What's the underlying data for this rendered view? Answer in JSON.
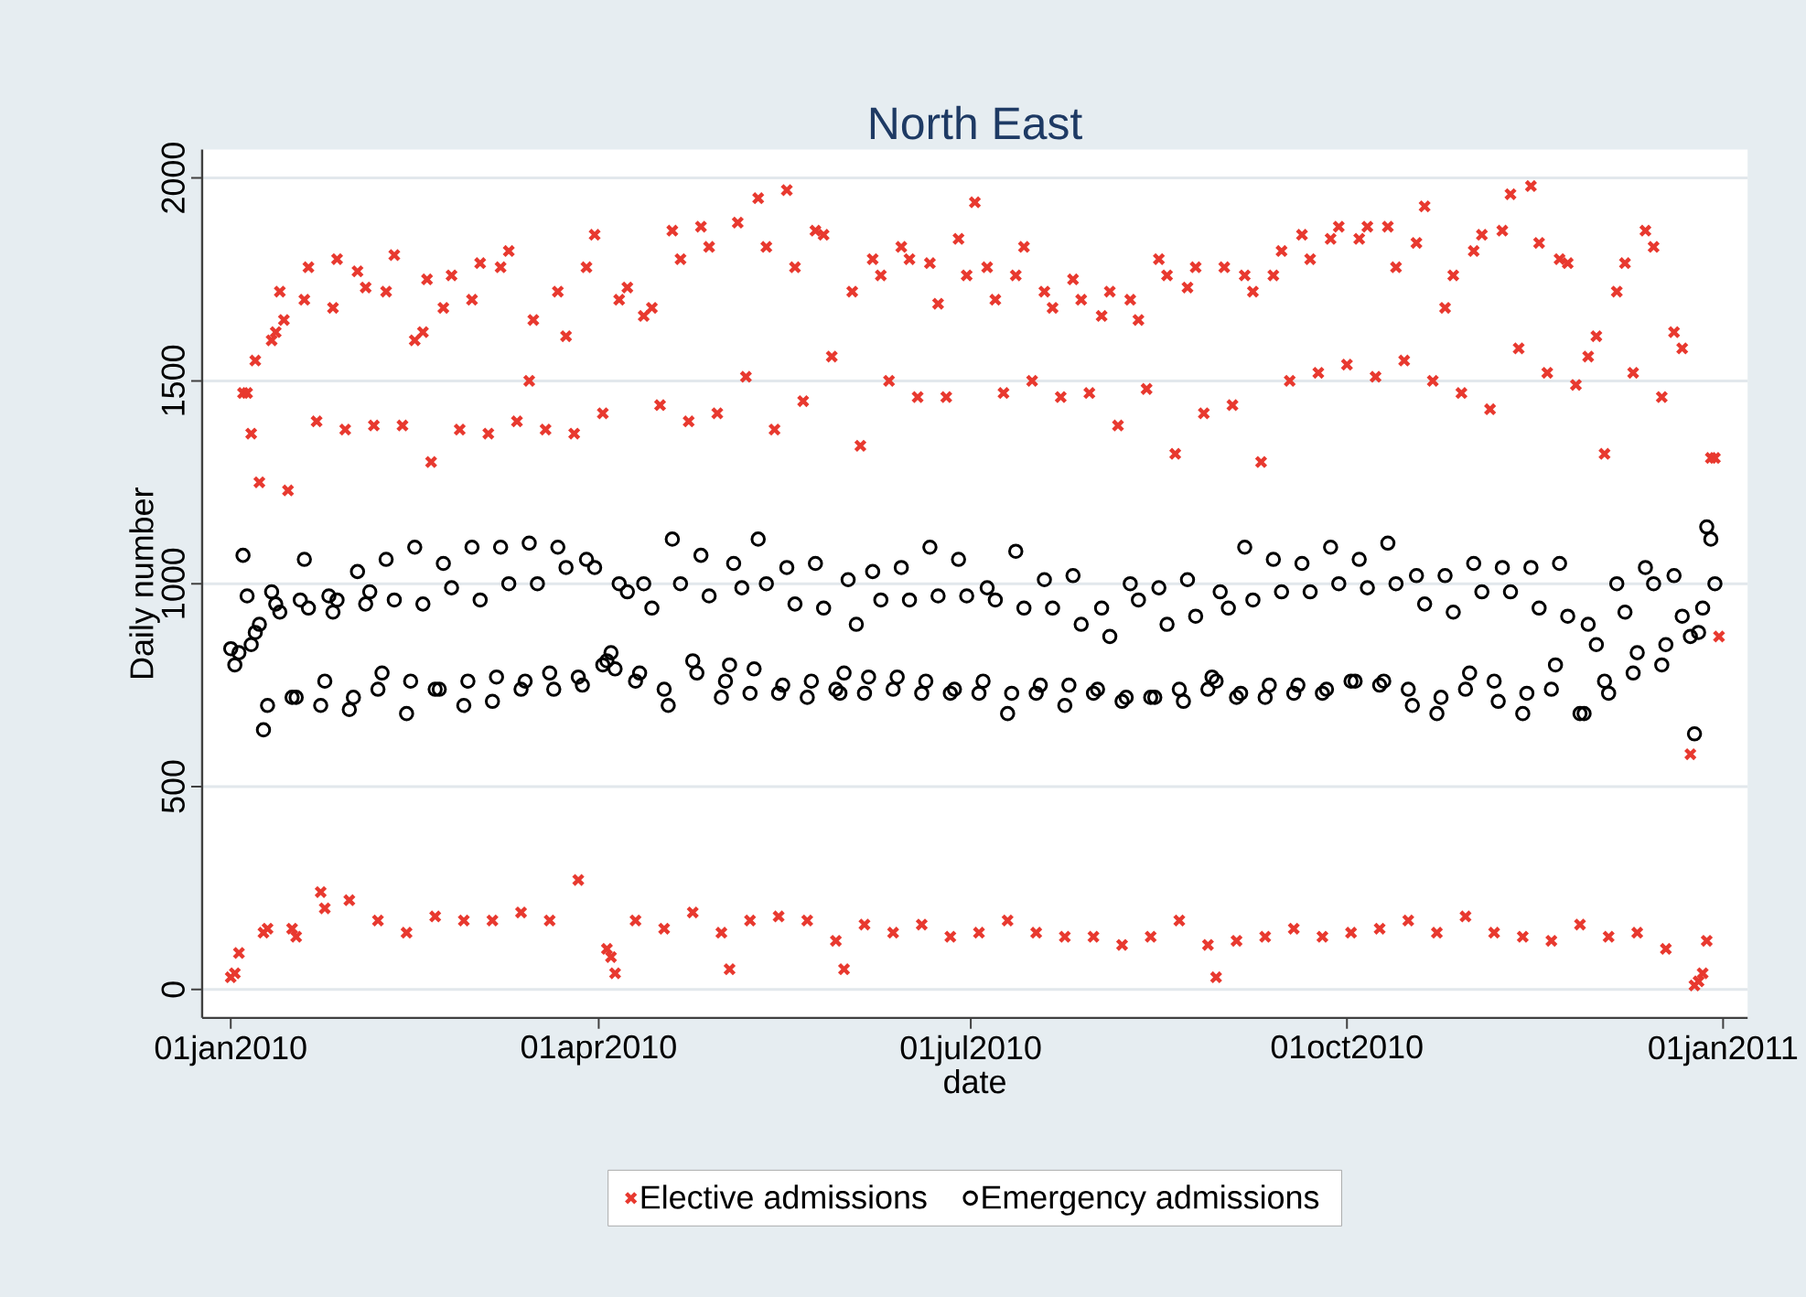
{
  "chart_data": {
    "type": "scatter",
    "title": "North East",
    "xlabel": "date",
    "ylabel": "Daily number",
    "xlim": [
      "2009-12-25",
      "2011-01-07"
    ],
    "ylim": [
      -70,
      2070
    ],
    "xticks": [
      {
        "value": "2010-01-01",
        "label": "01jan2010"
      },
      {
        "value": "2010-04-01",
        "label": "01apr2010"
      },
      {
        "value": "2010-07-01",
        "label": "01jul2010"
      },
      {
        "value": "2010-10-01",
        "label": "01oct2010"
      },
      {
        "value": "2011-01-01",
        "label": "01jan2011"
      }
    ],
    "yticks": [
      0,
      500,
      1000,
      1500,
      2000
    ],
    "grid": "y",
    "legend": "bottom",
    "series": [
      {
        "name": "Elective admissions",
        "color": "#e8392f",
        "marker": "cross",
        "x": [
          "2010-01-01",
          "2010-01-02",
          "2010-01-03",
          "2010-01-04",
          "2010-01-05",
          "2010-01-06",
          "2010-01-07",
          "2010-01-08",
          "2010-01-09",
          "2010-01-10",
          "2010-01-11",
          "2010-01-12",
          "2010-01-13",
          "2010-01-14",
          "2010-01-15",
          "2010-01-16",
          "2010-01-17",
          "2010-01-19",
          "2010-01-20",
          "2010-01-22",
          "2010-01-23",
          "2010-01-24",
          "2010-01-26",
          "2010-01-27",
          "2010-01-29",
          "2010-01-30",
          "2010-02-01",
          "2010-02-03",
          "2010-02-05",
          "2010-02-06",
          "2010-02-08",
          "2010-02-10",
          "2010-02-12",
          "2010-02-13",
          "2010-02-15",
          "2010-02-17",
          "2010-02-18",
          "2010-02-19",
          "2010-02-20",
          "2010-02-22",
          "2010-02-24",
          "2010-02-26",
          "2010-02-27",
          "2010-03-01",
          "2010-03-03",
          "2010-03-05",
          "2010-03-06",
          "2010-03-08",
          "2010-03-10",
          "2010-03-12",
          "2010-03-13",
          "2010-03-15",
          "2010-03-16",
          "2010-03-19",
          "2010-03-20",
          "2010-03-22",
          "2010-03-24",
          "2010-03-26",
          "2010-03-27",
          "2010-03-29",
          "2010-03-31",
          "2010-04-02",
          "2010-04-03",
          "2010-04-04",
          "2010-04-05",
          "2010-04-06",
          "2010-04-08",
          "2010-04-10",
          "2010-04-12",
          "2010-04-14",
          "2010-04-16",
          "2010-04-17",
          "2010-04-19",
          "2010-04-21",
          "2010-04-23",
          "2010-04-24",
          "2010-04-26",
          "2010-04-28",
          "2010-04-30",
          "2010-05-01",
          "2010-05-03",
          "2010-05-05",
          "2010-05-07",
          "2010-05-08",
          "2010-05-10",
          "2010-05-12",
          "2010-05-14",
          "2010-05-15",
          "2010-05-17",
          "2010-05-19",
          "2010-05-21",
          "2010-05-22",
          "2010-05-24",
          "2010-05-26",
          "2010-05-28",
          "2010-05-29",
          "2010-05-31",
          "2010-06-02",
          "2010-06-04",
          "2010-06-05",
          "2010-06-07",
          "2010-06-09",
          "2010-06-11",
          "2010-06-12",
          "2010-06-14",
          "2010-06-16",
          "2010-06-18",
          "2010-06-19",
          "2010-06-21",
          "2010-06-23",
          "2010-06-25",
          "2010-06-26",
          "2010-06-28",
          "2010-06-30",
          "2010-07-02",
          "2010-07-03",
          "2010-07-05",
          "2010-07-07",
          "2010-07-09",
          "2010-07-10",
          "2010-07-12",
          "2010-07-14",
          "2010-07-16",
          "2010-07-17",
          "2010-07-19",
          "2010-07-21",
          "2010-07-23",
          "2010-07-24",
          "2010-07-26",
          "2010-07-28",
          "2010-07-30",
          "2010-07-31",
          "2010-08-02",
          "2010-08-04",
          "2010-08-06",
          "2010-08-07",
          "2010-08-09",
          "2010-08-11",
          "2010-08-13",
          "2010-08-14",
          "2010-08-16",
          "2010-08-18",
          "2010-08-20",
          "2010-08-21",
          "2010-08-23",
          "2010-08-25",
          "2010-08-27",
          "2010-08-28",
          "2010-08-30",
          "2010-09-01",
          "2010-09-03",
          "2010-09-04",
          "2010-09-06",
          "2010-09-08",
          "2010-09-10",
          "2010-09-11",
          "2010-09-13",
          "2010-09-15",
          "2010-09-17",
          "2010-09-18",
          "2010-09-20",
          "2010-09-22",
          "2010-09-24",
          "2010-09-25",
          "2010-09-27",
          "2010-09-29",
          "2010-10-01",
          "2010-10-02",
          "2010-10-04",
          "2010-10-06",
          "2010-10-08",
          "2010-10-09",
          "2010-10-11",
          "2010-10-13",
          "2010-10-15",
          "2010-10-16",
          "2010-10-18",
          "2010-10-20",
          "2010-10-22",
          "2010-10-23",
          "2010-10-25",
          "2010-10-27",
          "2010-10-29",
          "2010-10-30",
          "2010-11-01",
          "2010-11-03",
          "2010-11-05",
          "2010-11-06",
          "2010-11-08",
          "2010-11-10",
          "2010-11-12",
          "2010-11-13",
          "2010-11-15",
          "2010-11-17",
          "2010-11-19",
          "2010-11-20",
          "2010-11-22",
          "2010-11-24",
          "2010-11-26",
          "2010-11-27",
          "2010-11-29",
          "2010-12-01",
          "2010-12-03",
          "2010-12-04",
          "2010-12-06",
          "2010-12-08",
          "2010-12-10",
          "2010-12-11",
          "2010-12-13",
          "2010-12-15",
          "2010-12-17",
          "2010-12-18",
          "2010-12-20",
          "2010-12-22",
          "2010-12-24",
          "2010-12-25",
          "2010-12-26",
          "2010-12-27",
          "2010-12-28",
          "2010-12-29",
          "2010-12-30",
          "2010-12-31"
        ],
        "values": [
          30,
          40,
          90,
          1470,
          1470,
          1370,
          1550,
          1250,
          140,
          150,
          1600,
          1620,
          1720,
          1650,
          1230,
          150,
          130,
          1700,
          1780,
          1400,
          240,
          200,
          1680,
          1800,
          1380,
          220,
          1770,
          1730,
          1390,
          170,
          1720,
          1810,
          1390,
          140,
          1600,
          1620,
          1750,
          1300,
          180,
          1680,
          1760,
          1380,
          170,
          1700,
          1790,
          1370,
          170,
          1780,
          1820,
          1400,
          190,
          1500,
          1650,
          1380,
          170,
          1720,
          1610,
          1370,
          270,
          1780,
          1860,
          1420,
          100,
          80,
          40,
          1700,
          1730,
          170,
          1660,
          1680,
          1440,
          150,
          1870,
          1800,
          1400,
          190,
          1880,
          1830,
          1420,
          140,
          50,
          1890,
          1510,
          170,
          1950,
          1830,
          1380,
          180,
          1970,
          1780,
          1450,
          170,
          1870,
          1860,
          1560,
          120,
          50,
          1720,
          1340,
          160,
          1800,
          1760,
          1500,
          140,
          1830,
          1800,
          1460,
          160,
          1790,
          1690,
          1460,
          130,
          1850,
          1760,
          1940,
          140,
          1780,
          1700,
          1470,
          170,
          1760,
          1830,
          1500,
          140,
          1720,
          1680,
          1460,
          130,
          1750,
          1700,
          1470,
          130,
          1660,
          1720,
          1390,
          110,
          1700,
          1650,
          1480,
          130,
          1800,
          1760,
          1320,
          170,
          1730,
          1780,
          1420,
          110,
          30,
          1780,
          1440,
          120,
          1760,
          1720,
          1300,
          130,
          1760,
          1820,
          1500,
          150,
          1860,
          1800,
          1520,
          130,
          1850,
          1880,
          1540,
          140,
          1850,
          1880,
          1510,
          150,
          1880,
          1780,
          1550,
          170,
          1840,
          1930,
          1500,
          140,
          1680,
          1760,
          1470,
          180,
          1820,
          1860,
          1430,
          140,
          1870,
          1960,
          1580,
          130,
          1980,
          1840,
          1520,
          120,
          1800,
          1790,
          1490,
          160,
          1560,
          1610,
          1320,
          130,
          1720,
          1790,
          1520,
          140,
          1870,
          1830,
          1460,
          100,
          1620,
          1580,
          580,
          10,
          20,
          40,
          120,
          1310,
          1310,
          870
        ]
      },
      {
        "name": "Emergency admissions",
        "color": "#000000",
        "marker": "circle",
        "x": [
          "2010-01-01",
          "2010-01-02",
          "2010-01-03",
          "2010-01-04",
          "2010-01-05",
          "2010-01-06",
          "2010-01-07",
          "2010-01-08",
          "2010-01-09",
          "2010-01-10",
          "2010-01-11",
          "2010-01-12",
          "2010-01-13",
          "2010-01-16",
          "2010-01-17",
          "2010-01-18",
          "2010-01-19",
          "2010-01-20",
          "2010-01-23",
          "2010-01-24",
          "2010-01-25",
          "2010-01-26",
          "2010-01-27",
          "2010-01-30",
          "2010-01-31",
          "2010-02-01",
          "2010-02-03",
          "2010-02-04",
          "2010-02-06",
          "2010-02-07",
          "2010-02-08",
          "2010-02-10",
          "2010-02-13",
          "2010-02-14",
          "2010-02-15",
          "2010-02-17",
          "2010-02-20",
          "2010-02-21",
          "2010-02-22",
          "2010-02-24",
          "2010-02-27",
          "2010-02-28",
          "2010-03-01",
          "2010-03-03",
          "2010-03-06",
          "2010-03-07",
          "2010-03-08",
          "2010-03-10",
          "2010-03-13",
          "2010-03-14",
          "2010-03-15",
          "2010-03-17",
          "2010-03-20",
          "2010-03-21",
          "2010-03-22",
          "2010-03-24",
          "2010-03-27",
          "2010-03-28",
          "2010-03-29",
          "2010-03-31",
          "2010-04-02",
          "2010-04-03",
          "2010-04-04",
          "2010-04-05",
          "2010-04-06",
          "2010-04-08",
          "2010-04-10",
          "2010-04-11",
          "2010-04-12",
          "2010-04-14",
          "2010-04-17",
          "2010-04-18",
          "2010-04-19",
          "2010-04-21",
          "2010-04-24",
          "2010-04-25",
          "2010-04-26",
          "2010-04-28",
          "2010-05-01",
          "2010-05-02",
          "2010-05-03",
          "2010-05-04",
          "2010-05-06",
          "2010-05-08",
          "2010-05-09",
          "2010-05-10",
          "2010-05-12",
          "2010-05-15",
          "2010-05-16",
          "2010-05-17",
          "2010-05-19",
          "2010-05-22",
          "2010-05-23",
          "2010-05-24",
          "2010-05-26",
          "2010-05-29",
          "2010-05-30",
          "2010-05-31",
          "2010-06-01",
          "2010-06-03",
          "2010-06-05",
          "2010-06-06",
          "2010-06-07",
          "2010-06-09",
          "2010-06-12",
          "2010-06-13",
          "2010-06-14",
          "2010-06-16",
          "2010-06-19",
          "2010-06-20",
          "2010-06-21",
          "2010-06-23",
          "2010-06-26",
          "2010-06-27",
          "2010-06-28",
          "2010-06-30",
          "2010-07-03",
          "2010-07-04",
          "2010-07-05",
          "2010-07-07",
          "2010-07-10",
          "2010-07-11",
          "2010-07-12",
          "2010-07-14",
          "2010-07-17",
          "2010-07-18",
          "2010-07-19",
          "2010-07-21",
          "2010-07-24",
          "2010-07-25",
          "2010-07-26",
          "2010-07-28",
          "2010-07-31",
          "2010-08-01",
          "2010-08-02",
          "2010-08-04",
          "2010-08-07",
          "2010-08-08",
          "2010-08-09",
          "2010-08-11",
          "2010-08-14",
          "2010-08-15",
          "2010-08-16",
          "2010-08-18",
          "2010-08-21",
          "2010-08-22",
          "2010-08-23",
          "2010-08-25",
          "2010-08-28",
          "2010-08-29",
          "2010-08-30",
          "2010-08-31",
          "2010-09-02",
          "2010-09-04",
          "2010-09-05",
          "2010-09-06",
          "2010-09-08",
          "2010-09-11",
          "2010-09-12",
          "2010-09-13",
          "2010-09-15",
          "2010-09-18",
          "2010-09-19",
          "2010-09-20",
          "2010-09-22",
          "2010-09-25",
          "2010-09-26",
          "2010-09-27",
          "2010-09-29",
          "2010-10-02",
          "2010-10-03",
          "2010-10-04",
          "2010-10-06",
          "2010-10-09",
          "2010-10-10",
          "2010-10-11",
          "2010-10-13",
          "2010-10-16",
          "2010-10-17",
          "2010-10-18",
          "2010-10-20",
          "2010-10-23",
          "2010-10-24",
          "2010-10-25",
          "2010-10-27",
          "2010-10-30",
          "2010-10-31",
          "2010-11-01",
          "2010-11-03",
          "2010-11-06",
          "2010-11-07",
          "2010-11-08",
          "2010-11-10",
          "2010-11-13",
          "2010-11-14",
          "2010-11-15",
          "2010-11-17",
          "2010-11-20",
          "2010-11-21",
          "2010-11-22",
          "2010-11-24",
          "2010-11-27",
          "2010-11-28",
          "2010-11-29",
          "2010-12-01",
          "2010-12-03",
          "2010-12-04",
          "2010-12-06",
          "2010-12-08",
          "2010-12-10",
          "2010-12-11",
          "2010-12-13",
          "2010-12-15",
          "2010-12-17",
          "2010-12-18",
          "2010-12-20",
          "2010-12-22",
          "2010-12-24",
          "2010-12-25",
          "2010-12-26",
          "2010-12-27",
          "2010-12-28",
          "2010-12-29",
          "2010-12-30"
        ],
        "values": [
          840,
          800,
          830,
          1070,
          970,
          850,
          880,
          900,
          640,
          700,
          980,
          950,
          930,
          720,
          720,
          960,
          1060,
          940,
          700,
          760,
          970,
          930,
          960,
          690,
          720,
          1030,
          950,
          980,
          740,
          780,
          1060,
          960,
          680,
          760,
          1090,
          950,
          740,
          740,
          1050,
          990,
          700,
          760,
          1090,
          960,
          710,
          770,
          1090,
          1000,
          740,
          760,
          1100,
          1000,
          780,
          740,
          1090,
          1040,
          770,
          750,
          1060,
          1040,
          800,
          810,
          830,
          790,
          1000,
          980,
          760,
          780,
          1000,
          940,
          740,
          700,
          1110,
          1000,
          810,
          780,
          1070,
          970,
          720,
          760,
          800,
          1050,
          990,
          730,
          790,
          1110,
          1000,
          730,
          750,
          1040,
          950,
          720,
          760,
          1050,
          940,
          740,
          730,
          780,
          1010,
          900,
          730,
          770,
          1030,
          960,
          740,
          770,
          1040,
          960,
          730,
          760,
          1090,
          970,
          730,
          740,
          1060,
          970,
          730,
          760,
          990,
          960,
          680,
          730,
          1080,
          940,
          730,
          750,
          1010,
          940,
          700,
          750,
          1020,
          900,
          730,
          740,
          940,
          870,
          710,
          720,
          1000,
          960,
          720,
          720,
          990,
          900,
          740,
          710,
          1010,
          920,
          740,
          770,
          760,
          980,
          940,
          720,
          730,
          1090,
          960,
          720,
          750,
          1060,
          980,
          730,
          750,
          1050,
          980,
          730,
          740,
          1090,
          1000,
          760,
          760,
          1060,
          990,
          750,
          760,
          1100,
          1000,
          740,
          700,
          1020,
          950,
          680,
          720,
          1020,
          930,
          740,
          780,
          1050,
          980,
          760,
          710,
          1040,
          980,
          680,
          730,
          1040,
          940,
          740,
          800,
          1050,
          920,
          680,
          680,
          900,
          850,
          760,
          730,
          1000,
          930,
          780,
          830,
          1040,
          1000,
          800,
          850,
          1020,
          920,
          870,
          630,
          880,
          940,
          1140,
          1110,
          1000
        ]
      }
    ]
  }
}
